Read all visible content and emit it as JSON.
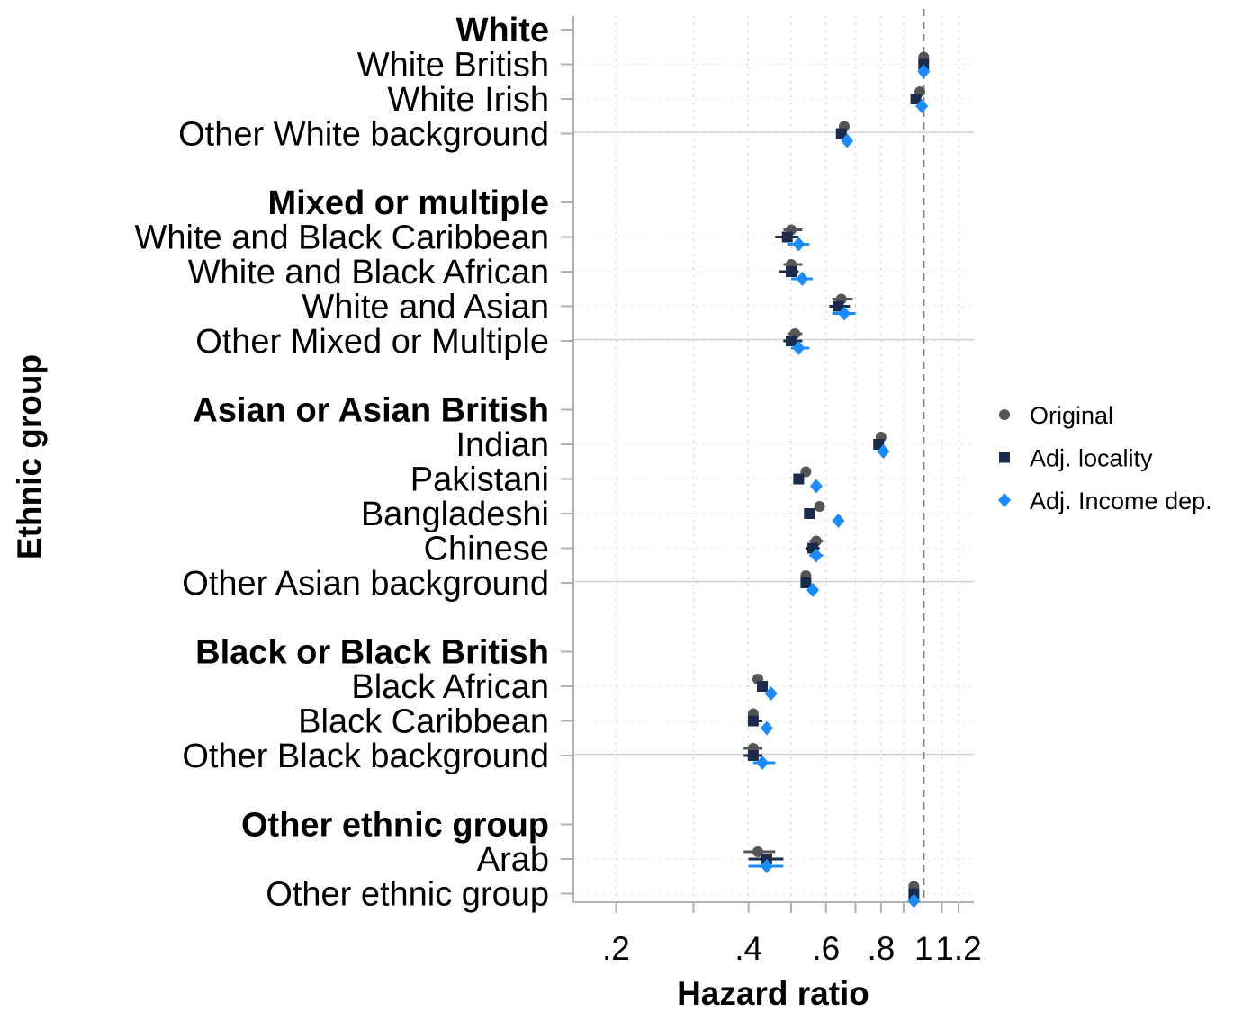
{
  "chart_data": {
    "type": "scatter",
    "subtype": "forest-plot",
    "xlabel": "Hazard ratio",
    "ylabel": "Ethnic group",
    "xscale": "log",
    "xlim": [
      0.16,
      1.3
    ],
    "xticks": [
      {
        "value": 0.2,
        "label": ".2"
      },
      {
        "value": 0.4,
        "label": ".4"
      },
      {
        "value": 0.6,
        "label": ".6"
      },
      {
        "value": 0.8,
        "label": ".8"
      },
      {
        "value": 1,
        "label": "1"
      },
      {
        "value": 1.2,
        "label": "1.2"
      }
    ],
    "minor_grid": [
      0.2,
      0.3,
      0.4,
      0.5,
      0.6,
      0.7,
      0.8,
      0.9,
      1.1,
      1.2
    ],
    "reference_line": 1,
    "legend_position": "right",
    "series": [
      {
        "name": "Original",
        "marker": "circle",
        "color": "#555555"
      },
      {
        "name": "Adj. locality",
        "marker": "square",
        "color": "#1a2b4c"
      },
      {
        "name": "Adj. Income dep.",
        "marker": "diamond",
        "color": "#1a8cff"
      }
    ],
    "groups": [
      {
        "name": "White",
        "items": [
          {
            "label": "White British",
            "values": [
              1.0,
              1.0,
              1.0
            ],
            "ci": [
              null,
              null,
              null
            ]
          },
          {
            "label": "White Irish",
            "values": [
              0.98,
              0.96,
              0.99
            ],
            "ci": [
              null,
              null,
              null
            ]
          },
          {
            "label": "Other White background",
            "values": [
              0.66,
              0.65,
              0.67
            ],
            "ci": [
              null,
              null,
              null
            ]
          }
        ]
      },
      {
        "name": "Mixed or multiple",
        "items": [
          {
            "label": "White and Black Caribbean",
            "values": [
              0.5,
              0.49,
              0.52
            ],
            "ci": [
              [
                0.48,
                0.53
              ],
              [
                0.46,
                0.52
              ],
              [
                0.49,
                0.55
              ]
            ]
          },
          {
            "label": "White and Black African",
            "values": [
              0.5,
              0.5,
              0.53
            ],
            "ci": [
              [
                0.48,
                0.53
              ],
              [
                0.47,
                0.52
              ],
              [
                0.5,
                0.56
              ]
            ]
          },
          {
            "label": "White and Asian",
            "values": [
              0.65,
              0.64,
              0.66
            ],
            "ci": [
              [
                0.62,
                0.69
              ],
              [
                0.61,
                0.68
              ],
              [
                0.62,
                0.7
              ]
            ]
          },
          {
            "label": "Other Mixed or Multiple",
            "values": [
              0.51,
              0.5,
              0.52
            ],
            "ci": [
              [
                0.49,
                0.53
              ],
              [
                0.48,
                0.53
              ],
              [
                0.5,
                0.55
              ]
            ]
          }
        ]
      },
      {
        "name": "Asian or Asian British",
        "items": [
          {
            "label": "Indian",
            "values": [
              0.8,
              0.79,
              0.81
            ],
            "ci": [
              null,
              null,
              null
            ]
          },
          {
            "label": "Pakistani",
            "values": [
              0.54,
              0.52,
              0.57
            ],
            "ci": [
              null,
              null,
              null
            ]
          },
          {
            "label": "Bangladeshi",
            "values": [
              0.58,
              0.55,
              0.64
            ],
            "ci": [
              null,
              null,
              null
            ]
          },
          {
            "label": "Chinese",
            "values": [
              0.57,
              0.56,
              0.57
            ],
            "ci": [
              [
                0.55,
                0.59
              ],
              [
                0.54,
                0.58
              ],
              [
                0.55,
                0.59
              ]
            ]
          },
          {
            "label": "Other Asian background",
            "values": [
              0.54,
              0.54,
              0.56
            ],
            "ci": [
              null,
              null,
              null
            ]
          }
        ]
      },
      {
        "name": "Black or Black British",
        "items": [
          {
            "label": "Black African",
            "values": [
              0.42,
              0.43,
              0.45
            ],
            "ci": [
              null,
              null,
              null
            ]
          },
          {
            "label": "Black Caribbean",
            "values": [
              0.41,
              0.41,
              0.44
            ],
            "ci": [
              null,
              [
                0.4,
                0.43
              ],
              null
            ]
          },
          {
            "label": "Other Black background",
            "values": [
              0.41,
              0.41,
              0.43
            ],
            "ci": [
              [
                0.39,
                0.43
              ],
              [
                0.39,
                0.43
              ],
              [
                0.41,
                0.46
              ]
            ]
          }
        ]
      },
      {
        "name": "Other ethnic group",
        "items": [
          {
            "label": "Arab",
            "values": [
              0.42,
              0.44,
              0.44
            ],
            "ci": [
              [
                0.39,
                0.46
              ],
              [
                0.4,
                0.48
              ],
              [
                0.4,
                0.48
              ]
            ]
          },
          {
            "label": "Other ethnic group",
            "values": [
              0.95,
              0.95,
              0.95
            ],
            "ci": [
              null,
              null,
              null
            ]
          }
        ]
      }
    ]
  }
}
